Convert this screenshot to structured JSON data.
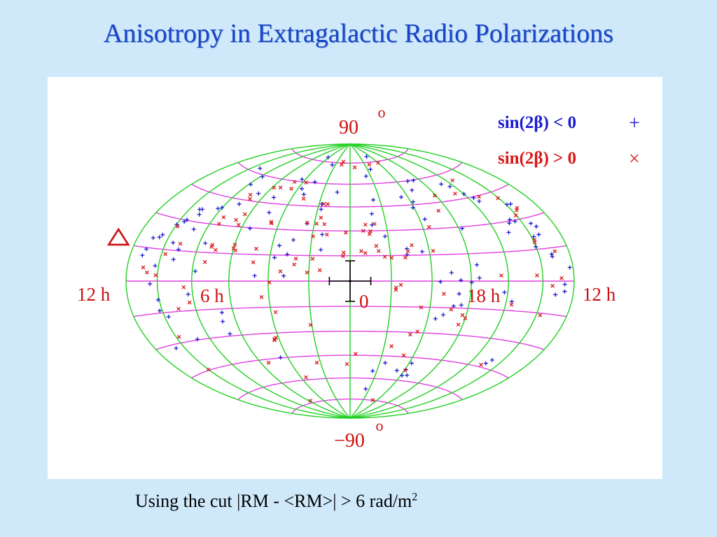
{
  "title": "Anisotropy in Extragalactic Radio Polarizations",
  "footnote": {
    "text": "Using the cut |RM - <RM>| > 6 rad/m",
    "superscript": "2"
  },
  "chart_data": {
    "type": "scatter",
    "projection": "aitoff-equal-area sky map",
    "latitude_labels": {
      "top": "90",
      "bottom": "−90",
      "degree_mark": "o"
    },
    "longitude_labels": [
      "12 h",
      "6 h",
      "0",
      "18 h",
      "12 h"
    ],
    "legend": {
      "placement": "top-right",
      "entries": [
        {
          "label": "sin(2β) < 0",
          "marker": "+",
          "color": "#1a1ad0"
        },
        {
          "label": "sin(2β) > 0",
          "marker": "×",
          "color": "#d81818"
        }
      ]
    },
    "colors": {
      "meridians": "#22d022",
      "parallels": "#e040e0",
      "plus_series": "#1a1ad0",
      "cross_series": "#d81818",
      "labels": "#cc1010",
      "anchor_marker": "#cc1010"
    },
    "anchor_marker": {
      "shape": "triangle",
      "lon_h": 12.0,
      "lat": 5
    },
    "center_errorbar": {
      "lon_h": 0.0,
      "lat": 0,
      "dlon_h": 1.0,
      "dlat": 12
    },
    "series": [
      {
        "marker": "+",
        "points": [
          [
            11.18,
            11.4
          ],
          [
            11.06,
            14.3
          ],
          [
            10.96,
            19.6
          ],
          [
            10.58,
            20.3
          ],
          [
            10.46,
            21.6
          ],
          [
            9.99,
            27.2
          ],
          [
            9.65,
            29.2
          ],
          [
            9.58,
            30.3
          ],
          [
            9.07,
            33.8
          ],
          [
            9.34,
            36.2
          ],
          [
            9.17,
            36.5
          ],
          [
            8.23,
            38.3
          ],
          [
            8.02,
            39.1
          ],
          [
            7.14,
            42.4
          ],
          [
            6.53,
            49.7
          ],
          [
            5.24,
            48.6
          ],
          [
            4.31,
            61.6
          ],
          [
            3.71,
            55.6
          ],
          [
            3.31,
            52.1
          ],
          [
            3.03,
            60.6
          ],
          [
            2.42,
            73.2
          ],
          [
            2.41,
            34.2
          ],
          [
            1.79,
            43.2
          ],
          [
            1.48,
            27.7
          ],
          [
            1.47,
            18.5
          ],
          [
            2.95,
            24.1
          ],
          [
            3.14,
            15.6
          ],
          [
            4.88,
            39.5
          ],
          [
            1.83,
            46.6
          ],
          [
            0.95,
            54.5
          ],
          [
            4.18,
            78.2
          ],
          [
            9.29,
            62.5
          ],
          [
            7.84,
            59.0
          ],
          [
            7.86,
            53.7
          ],
          [
            5.51,
            29.6
          ],
          [
            3.62,
            20.5
          ],
          [
            3.76,
            13.5
          ],
          [
            7.66,
            19.8
          ],
          [
            8.75,
            26.3
          ],
          [
            9.56,
            18.6
          ],
          [
            9.07,
            15.6
          ],
          [
            10.21,
            7.1
          ],
          [
            9.19,
            10.6
          ],
          [
            7.83,
            5.1
          ],
          [
            4.68,
            3.0
          ],
          [
            3.23,
            3.0
          ],
          [
            8.25,
            -6.7
          ],
          [
            10.07,
            -8.8
          ],
          [
            10.16,
            -13.9
          ],
          [
            10.58,
            -31.8
          ],
          [
            8.78,
            -29.6
          ],
          [
            6.66,
            -28.8
          ],
          [
            6.74,
            -21.8
          ],
          [
            6.61,
            -17.0
          ],
          [
            9.76,
            -17.1
          ],
          [
            10.45,
            -1.3
          ],
          [
            4.46,
            -44.7
          ],
          [
            -4.18,
            -48.6
          ],
          [
            -4.1,
            -56.7
          ],
          [
            -4.47,
            -56.2
          ],
          [
            -3.46,
            -53.8
          ],
          [
            -4.08,
            -52.8
          ],
          [
            -2.38,
            -49.4
          ],
          [
            -1.69,
            -55.0
          ],
          [
            -1.64,
            -67.4
          ],
          [
            -9.09,
            -42.6
          ],
          [
            -9.27,
            -40.4
          ],
          [
            -4.41,
            -21.5
          ],
          [
            -4.77,
            -19.1
          ],
          [
            -5.6,
            -13.3
          ],
          [
            -5.4,
            -7.1
          ],
          [
            -10.84,
            -6.1
          ],
          [
            -11.41,
            -4.5
          ],
          [
            -11.38,
            -1.4
          ],
          [
            -8.31,
            -10.4
          ],
          [
            -7.81,
            -5.8
          ],
          [
            -11.78,
            5.8
          ],
          [
            -9.99,
            16.3
          ],
          [
            -8.77,
            24.6
          ],
          [
            -9.17,
            29.0
          ],
          [
            -9.36,
            30.6
          ],
          [
            -10.51,
            27.1
          ],
          [
            -10.72,
            25.3
          ],
          [
            -10.16,
            21.0
          ],
          [
            -10.55,
            21.6
          ],
          [
            -9.61,
            29.4
          ],
          [
            -10.35,
            37.5
          ],
          [
            -10.07,
            37.7
          ],
          [
            -8.49,
            42.2
          ],
          [
            -8.37,
            44.4
          ],
          [
            -8.01,
            47.3
          ],
          [
            -7.68,
            52.6
          ],
          [
            -7.28,
            54.8
          ],
          [
            -5.48,
            59.7
          ],
          [
            -4.95,
            59.7
          ],
          [
            -1.56,
            65.3
          ],
          [
            -1.56,
            49.3
          ],
          [
            -1.29,
            40.5
          ],
          [
            -1.22,
            33.6
          ],
          [
            -3.54,
            50.2
          ],
          [
            -4.15,
            46.7
          ],
          [
            -3.93,
            43.2
          ],
          [
            -2.87,
            18.9
          ],
          [
            -2.84,
            15.4
          ],
          [
            -3.63,
            17.0
          ],
          [
            -4.99,
            4.7
          ],
          [
            -6.43,
            1.7
          ],
          [
            -4.42,
            -0.4
          ],
          [
            -6.02,
            -0.7
          ],
          [
            -5.46,
            0.5
          ],
          [
            -2.36,
            69.9
          ],
          [
            -3.34,
            79.2
          ],
          [
            -6.35,
            8.8
          ],
          [
            -4.31,
            35.9
          ],
          [
            -1.84,
            26.5
          ],
          [
            -4.64,
            53.9
          ],
          [
            -6.19,
            29.1
          ],
          [
            -10.8,
            11.1
          ],
          [
            -10.8,
            12.2
          ],
          [
            -5.21,
            -14.0
          ]
        ]
      },
      {
        "marker": "×",
        "points": [
          [
            10.94,
            6.1
          ],
          [
            10.11,
            2.7
          ],
          [
            10.66,
            3.9
          ],
          [
            8.46,
            -3.1
          ],
          [
            8.26,
            -10.9
          ],
          [
            8.99,
            -13.7
          ],
          [
            9.82,
            -27.1
          ],
          [
            10.01,
            -44.6
          ],
          [
            -11.17,
            1.3
          ],
          [
            -10.6,
            -2.2
          ],
          [
            -11.07,
            13.3
          ],
          [
            -10.1,
            19.5
          ],
          [
            -10.04,
            18.4
          ],
          [
            -10.32,
            34.2
          ],
          [
            -9.96,
            32.0
          ],
          [
            -9.95,
            41.5
          ],
          [
            -7.44,
            48.4
          ],
          [
            -5.91,
            49.1
          ],
          [
            -5.4,
            40.2
          ],
          [
            -4.36,
            31.2
          ],
          [
            -4.2,
            17.3
          ],
          [
            -4.62,
            -7.2
          ],
          [
            -5.12,
            -15.9
          ],
          [
            -5.75,
            -24.2
          ],
          [
            -6.0,
            -20.5
          ],
          [
            -5.8,
            -18.8
          ],
          [
            -3.65,
            -29.4
          ],
          [
            -3.3,
            -31.3
          ],
          [
            -2.43,
            -38.8
          ],
          [
            -3.38,
            -44.1
          ],
          [
            -4.05,
            -53.3
          ],
          [
            -0.34,
            -44.1
          ],
          [
            5.77,
            -73.5
          ],
          [
            2.25,
            -49.3
          ],
          [
            2.07,
            -25.9
          ],
          [
            4.15,
            -32.8
          ],
          [
            4.29,
            -34.2
          ],
          [
            4.25,
            -33.6
          ],
          [
            5.48,
            -47.1
          ],
          [
            3.77,
            -17.9
          ],
          [
            4.37,
            -9.1
          ],
          [
            3.93,
            -0.8
          ],
          [
            4.81,
            10.6
          ],
          [
            4.79,
            18.3
          ],
          [
            2.68,
            13.1
          ],
          [
            1.85,
            13.1
          ],
          [
            2.74,
            9.7
          ],
          [
            3.4,
            5.6
          ],
          [
            1.47,
            6.4
          ],
          [
            0.32,
            16.9
          ],
          [
            0.35,
            14.8
          ],
          [
            -0.56,
            17.8
          ],
          [
            -1.43,
            17.8
          ],
          [
            -1.33,
            20.8
          ],
          [
            -0.76,
            16.6
          ],
          [
            -1.72,
            14.3
          ],
          [
            -2.05,
            13.7
          ],
          [
            -2.74,
            13.7
          ],
          [
            -2.91,
            17.4
          ],
          [
            -3.15,
            20.9
          ],
          [
            -1.03,
            28.0
          ],
          [
            -0.71,
            30.0
          ],
          [
            -1.09,
            29.7
          ],
          [
            -0.85,
            33.8
          ],
          [
            -1.36,
            34.2
          ],
          [
            0.23,
            29.0
          ],
          [
            1.23,
            27.7
          ],
          [
            1.43,
            34.0
          ],
          [
            1.87,
            34.2
          ],
          [
            1.69,
            38.0
          ],
          [
            1.95,
            26.5
          ],
          [
            2.41,
            34.6
          ],
          [
            4.42,
            33.3
          ],
          [
            4.48,
            34.2
          ],
          [
            6.28,
            37.3
          ],
          [
            3.17,
            49.4
          ],
          [
            1.69,
            46.7
          ],
          [
            1.44,
            46.6
          ],
          [
            3.73,
            59.8
          ],
          [
            4.72,
            59.4
          ],
          [
            4.5,
            55.0
          ],
          [
            5.38,
            54.9
          ],
          [
            5.86,
            54.3
          ],
          [
            6.75,
            46.0
          ],
          [
            7.0,
            48.3
          ],
          [
            6.27,
            31.1
          ],
          [
            6.58,
            33.6
          ],
          [
            7.44,
            34.3
          ],
          [
            7.44,
            30.6
          ],
          [
            9.85,
            26.5
          ],
          [
            9.1,
            18.5
          ],
          [
            9.76,
            12.9
          ],
          [
            7.37,
            10.0
          ],
          [
            7.22,
            19.2
          ],
          [
            7.24,
            18.2
          ],
          [
            6.95,
            16.6
          ],
          [
            5.99,
            20.0
          ],
          [
            6.0,
            18.0
          ],
          [
            5.87,
            16.9
          ],
          [
            1.17,
            73.8
          ],
          [
            1.05,
            75.9
          ],
          [
            -0.58,
            71.8
          ],
          [
            -2.64,
            73.4
          ],
          [
            -4.01,
            73.9
          ],
          [
            -8.82,
            44.4
          ],
          [
            -10.5,
            35.1
          ],
          [
            -9.65,
            2.7
          ],
          [
            -7.61,
            2.9
          ],
          [
            -10.25,
            -16.0
          ],
          [
            -8.33,
            -12.0
          ],
          [
            -8.89,
            -43.8
          ],
          [
            -2.46,
            -2.2
          ],
          [
            -2.22,
            -5.1
          ],
          [
            2.09,
            5.0
          ],
          [
            0.22,
            -50.7
          ],
          [
            3.6,
            -58.3
          ],
          [
            -3.42,
            -74.9
          ],
          [
            -8.51,
            55.3
          ],
          [
            -3.55,
            -15.2
          ],
          [
            -2.23,
            -3.8
          ]
        ]
      }
    ]
  }
}
